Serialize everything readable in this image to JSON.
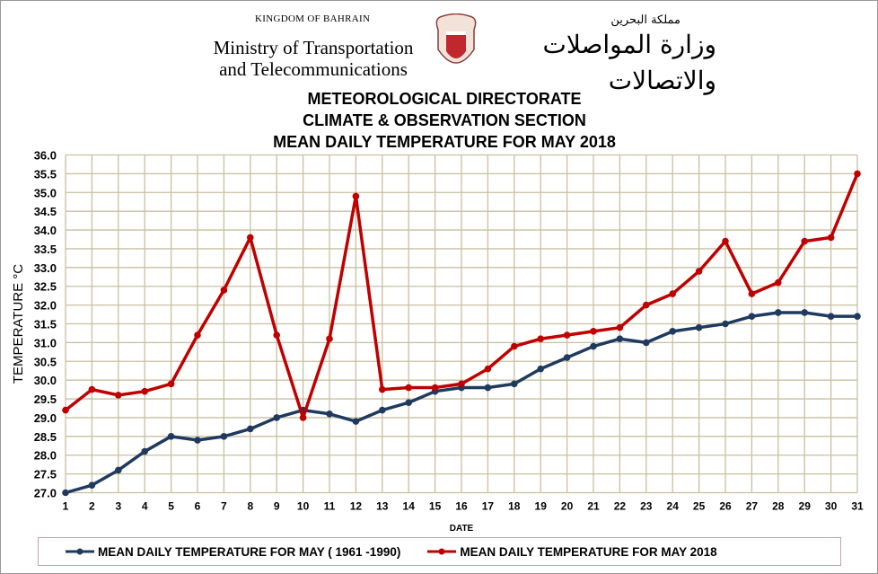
{
  "header": {
    "kingdom": "KINGDOM OF BAHRAIN",
    "ministry_line1": "Ministry of Transportation",
    "ministry_line2": "and Telecommunications",
    "arabic_kingdom": "مملكة البحرين",
    "arabic_ministry": "وزارة المواصلات والاتصالات"
  },
  "colors": {
    "normal": "#1f3a5f",
    "y2018": "#c00000",
    "grid": "#c8bfa0"
  },
  "chart_data": {
    "type": "line",
    "title": [
      "METEOROLOGICAL  DIRECTORATE",
      "CLIMATE & OBSERVATION SECTION",
      "MEAN DAILY TEMPERATURE  FOR MAY 2018"
    ],
    "xlabel": "DATE",
    "ylabel": "TEMPERATURE °C",
    "ylim": [
      27.0,
      36.0
    ],
    "ystep": 0.5,
    "x": [
      1,
      2,
      3,
      4,
      5,
      6,
      7,
      8,
      9,
      10,
      11,
      12,
      13,
      14,
      15,
      16,
      17,
      18,
      19,
      20,
      21,
      22,
      23,
      24,
      25,
      26,
      27,
      28,
      29,
      30,
      31
    ],
    "grid": true,
    "legend_position": "bottom",
    "series": [
      {
        "name": "MEAN DAILY TEMPERATURE FOR MAY ( 1961 -1990)",
        "color": "#1f3a5f",
        "values": [
          27.0,
          27.2,
          27.6,
          28.1,
          28.5,
          28.4,
          28.5,
          28.7,
          29.0,
          29.2,
          29.1,
          28.9,
          29.2,
          29.4,
          29.7,
          29.8,
          29.8,
          29.9,
          30.3,
          30.6,
          30.9,
          31.1,
          31.0,
          31.3,
          31.4,
          31.5,
          31.7,
          31.8,
          31.8,
          31.7,
          31.7
        ]
      },
      {
        "name": "MEAN DAILY TEMPERATURE FOR MAY 2018",
        "color": "#c00000",
        "values": [
          29.2,
          29.75,
          29.6,
          29.7,
          29.9,
          31.2,
          32.4,
          33.8,
          31.2,
          29.0,
          31.1,
          34.9,
          29.75,
          29.8,
          29.8,
          29.9,
          30.3,
          30.9,
          31.1,
          31.2,
          31.3,
          31.4,
          32.0,
          32.3,
          32.9,
          33.7,
          32.3,
          32.6,
          33.7,
          33.8,
          35.5
        ]
      }
    ]
  }
}
